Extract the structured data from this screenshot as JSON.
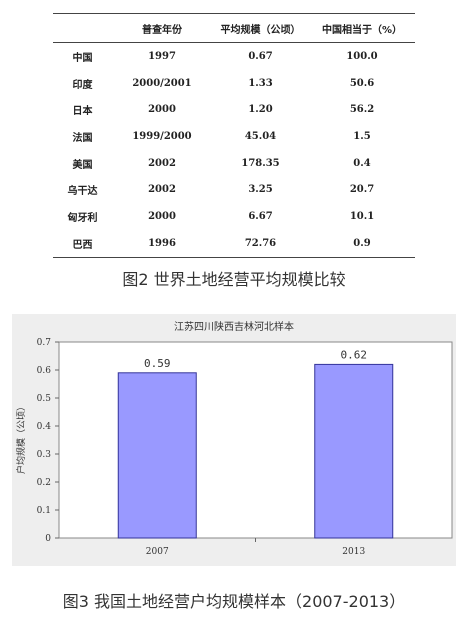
{
  "table": {
    "headers": [
      "",
      "普查年份",
      "平均规模（公顷）",
      "中国相当于（%）"
    ],
    "rows": [
      [
        "中国",
        "1997",
        "0.67",
        "100.0"
      ],
      [
        "印度",
        "2000/2001",
        "1.33",
        "50.6"
      ],
      [
        "日本",
        "2000",
        "1.20",
        "56.2"
      ],
      [
        "法国",
        "1999/2000",
        "45.04",
        "1.5"
      ],
      [
        "美国",
        "2002",
        "178.35",
        "0.4"
      ],
      [
        "乌干达",
        "2002",
        "3.25",
        "20.7"
      ],
      [
        "匈牙利",
        "2000",
        "6.67",
        "10.1"
      ],
      [
        "巴西",
        "1996",
        "72.76",
        "0.9"
      ]
    ]
  },
  "captions": {
    "fig2": "图2 世界土地经营平均规模比较",
    "fig3": "图3 我国土地经营户均规模样本（2007-2013）"
  },
  "chart_data": {
    "type": "bar",
    "title": "江苏四川陕西吉林河北样本",
    "ylabel": "户均规模（公顷）",
    "xlabel": "",
    "categories": [
      "2007",
      "2013"
    ],
    "values": [
      0.59,
      0.62
    ],
    "value_labels": [
      "0.59",
      "0.62"
    ],
    "ylim": [
      0,
      0.7
    ],
    "yticks": [
      0,
      0.1,
      0.2,
      0.3,
      0.4,
      0.5,
      0.6,
      0.7
    ],
    "ytick_labels": [
      "0",
      "0.1",
      "0.2",
      "0.3",
      "0.4",
      "0.5",
      "0.6",
      "0.7"
    ],
    "grid": false,
    "bar_color": "#9999ff",
    "bar_edge_color": "#333399"
  }
}
